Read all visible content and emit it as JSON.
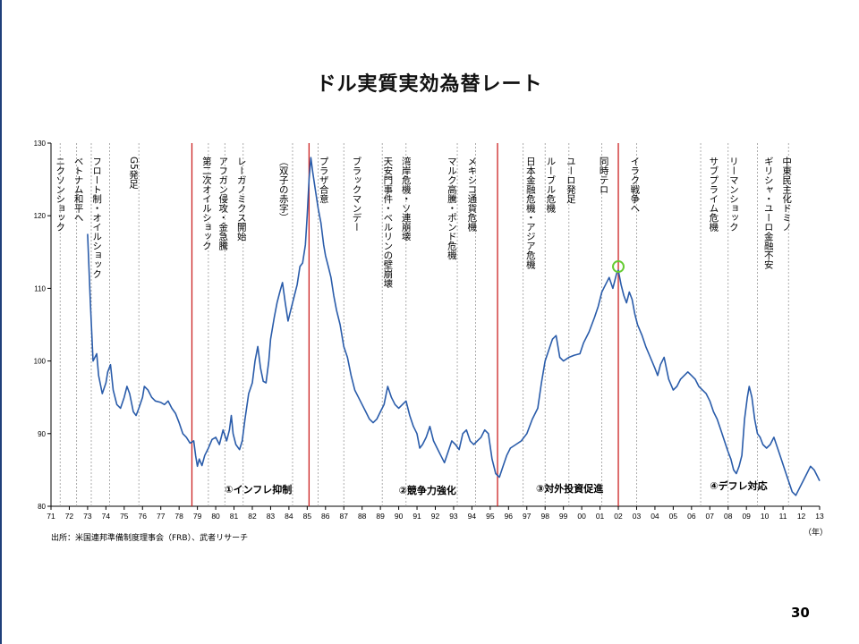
{
  "page": {
    "title": "ドル実質実効為替レート",
    "source": "出所：米国連邦準備制度理事会（FRB）、武者リサーチ",
    "page_number": "30"
  },
  "chart_data": {
    "type": "line",
    "title": "ドル実質実効為替レート",
    "x_unit": "（年）",
    "xlim": [
      1971,
      2013
    ],
    "ylim": [
      80,
      130
    ],
    "yticks": [
      80,
      90,
      100,
      110,
      120,
      130
    ],
    "xtick_labels": [
      "71",
      "72",
      "73",
      "74",
      "75",
      "76",
      "77",
      "78",
      "79",
      "80",
      "81",
      "82",
      "83",
      "84",
      "85",
      "86",
      "87",
      "88",
      "89",
      "90",
      "91",
      "92",
      "93",
      "94",
      "95",
      "96",
      "97",
      "98",
      "99",
      "00",
      "01",
      "02",
      "03",
      "04",
      "05",
      "06",
      "07",
      "08",
      "09",
      "10",
      "11",
      "12",
      "13"
    ],
    "series": [
      {
        "color": "#2a5caa",
        "points": [
          [
            1973.0,
            117.5
          ],
          [
            1973.15,
            108
          ],
          [
            1973.3,
            100
          ],
          [
            1973.5,
            101
          ],
          [
            1973.6,
            98
          ],
          [
            1973.8,
            95.5
          ],
          [
            1974.0,
            97
          ],
          [
            1974.1,
            98.5
          ],
          [
            1974.25,
            99.5
          ],
          [
            1974.4,
            96
          ],
          [
            1974.6,
            94
          ],
          [
            1974.8,
            93.5
          ],
          [
            1975.0,
            95
          ],
          [
            1975.15,
            96.5
          ],
          [
            1975.3,
            95.5
          ],
          [
            1975.5,
            93
          ],
          [
            1975.65,
            92.5
          ],
          [
            1975.8,
            93.5
          ],
          [
            1976.0,
            95
          ],
          [
            1976.1,
            96.5
          ],
          [
            1976.3,
            96
          ],
          [
            1976.5,
            95
          ],
          [
            1976.7,
            94.5
          ],
          [
            1977.0,
            94.3
          ],
          [
            1977.2,
            94
          ],
          [
            1977.4,
            94.5
          ],
          [
            1977.6,
            93.5
          ],
          [
            1977.8,
            92.8
          ],
          [
            1978.0,
            91.5
          ],
          [
            1978.2,
            90
          ],
          [
            1978.4,
            89.5
          ],
          [
            1978.6,
            88.7
          ],
          [
            1978.8,
            89
          ],
          [
            1978.9,
            87
          ],
          [
            1979.0,
            85.5
          ],
          [
            1979.1,
            86.5
          ],
          [
            1979.25,
            85.6
          ],
          [
            1979.4,
            87
          ],
          [
            1979.6,
            88
          ],
          [
            1979.8,
            89.2
          ],
          [
            1980.0,
            89.5
          ],
          [
            1980.2,
            88.5
          ],
          [
            1980.4,
            90.5
          ],
          [
            1980.6,
            89
          ],
          [
            1980.75,
            90.5
          ],
          [
            1980.85,
            92.5
          ],
          [
            1980.95,
            90
          ],
          [
            1981.1,
            88.5
          ],
          [
            1981.3,
            87.8
          ],
          [
            1981.45,
            89
          ],
          [
            1981.6,
            92
          ],
          [
            1981.8,
            95.5
          ],
          [
            1982.0,
            97
          ],
          [
            1982.15,
            100
          ],
          [
            1982.3,
            102
          ],
          [
            1982.45,
            99
          ],
          [
            1982.6,
            97.2
          ],
          [
            1982.75,
            97
          ],
          [
            1982.9,
            100
          ],
          [
            1983.0,
            103
          ],
          [
            1983.2,
            106
          ],
          [
            1983.35,
            108
          ],
          [
            1983.5,
            109.5
          ],
          [
            1983.65,
            110.8
          ],
          [
            1983.8,
            108
          ],
          [
            1983.95,
            105.5
          ],
          [
            1984.1,
            107
          ],
          [
            1984.3,
            109
          ],
          [
            1984.45,
            110.5
          ],
          [
            1984.6,
            113
          ],
          [
            1984.75,
            113.5
          ],
          [
            1984.9,
            116
          ],
          [
            1985.0,
            120
          ],
          [
            1985.1,
            125
          ],
          [
            1985.2,
            128
          ],
          [
            1985.3,
            126
          ],
          [
            1985.45,
            123.5
          ],
          [
            1985.6,
            121
          ],
          [
            1985.75,
            119
          ],
          [
            1985.9,
            116
          ],
          [
            1986.0,
            114.5
          ],
          [
            1986.15,
            113
          ],
          [
            1986.3,
            111.5
          ],
          [
            1986.45,
            109
          ],
          [
            1986.6,
            107
          ],
          [
            1986.8,
            105
          ],
          [
            1987.0,
            102
          ],
          [
            1987.2,
            100.5
          ],
          [
            1987.4,
            98
          ],
          [
            1987.6,
            96
          ],
          [
            1987.8,
            95
          ],
          [
            1988.0,
            94
          ],
          [
            1988.2,
            93
          ],
          [
            1988.4,
            92
          ],
          [
            1988.6,
            91.5
          ],
          [
            1988.8,
            92
          ],
          [
            1989.0,
            93
          ],
          [
            1989.2,
            94
          ],
          [
            1989.4,
            96.5
          ],
          [
            1989.6,
            95
          ],
          [
            1989.8,
            94
          ],
          [
            1990.0,
            93.5
          ],
          [
            1990.2,
            94
          ],
          [
            1990.4,
            94.5
          ],
          [
            1990.6,
            92.5
          ],
          [
            1990.8,
            91
          ],
          [
            1991.0,
            90
          ],
          [
            1991.15,
            88
          ],
          [
            1991.3,
            88.5
          ],
          [
            1991.5,
            89.5
          ],
          [
            1991.7,
            91
          ],
          [
            1991.9,
            89
          ],
          [
            1992.1,
            88
          ],
          [
            1992.3,
            87
          ],
          [
            1992.5,
            86
          ],
          [
            1992.7,
            87.5
          ],
          [
            1992.9,
            89
          ],
          [
            1993.1,
            88.5
          ],
          [
            1993.3,
            87.8
          ],
          [
            1993.5,
            90
          ],
          [
            1993.7,
            90.5
          ],
          [
            1993.9,
            89
          ],
          [
            1994.1,
            88.5
          ],
          [
            1994.3,
            89
          ],
          [
            1994.5,
            89.5
          ],
          [
            1994.7,
            90.5
          ],
          [
            1994.9,
            90
          ],
          [
            1995.1,
            86.5
          ],
          [
            1995.3,
            84.5
          ],
          [
            1995.5,
            84
          ],
          [
            1995.7,
            85.5
          ],
          [
            1995.9,
            87
          ],
          [
            1996.1,
            88
          ],
          [
            1996.4,
            88.5
          ],
          [
            1996.7,
            89
          ],
          [
            1997.0,
            90
          ],
          [
            1997.3,
            92
          ],
          [
            1997.6,
            93.5
          ],
          [
            1997.8,
            97
          ],
          [
            1998.0,
            100
          ],
          [
            1998.2,
            101.5
          ],
          [
            1998.4,
            103
          ],
          [
            1998.6,
            103.5
          ],
          [
            1998.8,
            100.5
          ],
          [
            1999.0,
            100
          ],
          [
            1999.3,
            100.5
          ],
          [
            1999.6,
            100.8
          ],
          [
            1999.9,
            101
          ],
          [
            2000.1,
            102.5
          ],
          [
            2000.4,
            104
          ],
          [
            2000.7,
            106
          ],
          [
            2000.9,
            107.5
          ],
          [
            2001.1,
            109.5
          ],
          [
            2001.3,
            110.5
          ],
          [
            2001.5,
            111.5
          ],
          [
            2001.7,
            110
          ],
          [
            2001.9,
            112
          ],
          [
            2002.0,
            112.5
          ],
          [
            2002.15,
            110.5
          ],
          [
            2002.3,
            109
          ],
          [
            2002.45,
            108
          ],
          [
            2002.6,
            109.5
          ],
          [
            2002.75,
            108.5
          ],
          [
            2002.9,
            106.5
          ],
          [
            2003.05,
            105
          ],
          [
            2003.3,
            103.5
          ],
          [
            2003.5,
            102
          ],
          [
            2003.75,
            100.5
          ],
          [
            2004.0,
            99
          ],
          [
            2004.15,
            98
          ],
          [
            2004.3,
            99.5
          ],
          [
            2004.5,
            100.5
          ],
          [
            2004.75,
            97.5
          ],
          [
            2005.0,
            96
          ],
          [
            2005.2,
            96.5
          ],
          [
            2005.4,
            97.5
          ],
          [
            2005.6,
            98
          ],
          [
            2005.8,
            98.5
          ],
          [
            2006.0,
            98
          ],
          [
            2006.2,
            97.5
          ],
          [
            2006.4,
            96.5
          ],
          [
            2006.6,
            96
          ],
          [
            2006.8,
            95.5
          ],
          [
            2007.0,
            94.5
          ],
          [
            2007.2,
            93
          ],
          [
            2007.4,
            92
          ],
          [
            2007.6,
            90.5
          ],
          [
            2007.8,
            89
          ],
          [
            2008.0,
            87.5
          ],
          [
            2008.15,
            86.5
          ],
          [
            2008.3,
            85
          ],
          [
            2008.45,
            84.5
          ],
          [
            2008.6,
            85.5
          ],
          [
            2008.75,
            87
          ],
          [
            2008.9,
            92
          ],
          [
            2009.05,
            95
          ],
          [
            2009.15,
            96.5
          ],
          [
            2009.3,
            95
          ],
          [
            2009.45,
            92
          ],
          [
            2009.6,
            90
          ],
          [
            2009.75,
            89.5
          ],
          [
            2009.9,
            88.5
          ],
          [
            2010.1,
            88
          ],
          [
            2010.3,
            88.5
          ],
          [
            2010.5,
            89.5
          ],
          [
            2010.7,
            88
          ],
          [
            2010.9,
            86.5
          ],
          [
            2011.1,
            85
          ],
          [
            2011.3,
            83.5
          ],
          [
            2011.5,
            82
          ],
          [
            2011.7,
            81.5
          ],
          [
            2011.9,
            82.5
          ],
          [
            2012.1,
            83.5
          ],
          [
            2012.3,
            84.5
          ],
          [
            2012.5,
            85.5
          ],
          [
            2012.7,
            85
          ],
          [
            2012.9,
            84
          ],
          [
            2013.0,
            83.5
          ]
        ]
      }
    ],
    "event_lines": [
      {
        "x": 1971.5,
        "color": "#999999"
      },
      {
        "x": 1972.4,
        "color": "#999999"
      },
      {
        "x": 1973.2,
        "color": "#999999"
      },
      {
        "x": 1974.2,
        "color": "#999999"
      },
      {
        "x": 1975.8,
        "color": "#999999"
      },
      {
        "x": 1978.7,
        "color": "#cc2222"
      },
      {
        "x": 1979.6,
        "color": "#999999"
      },
      {
        "x": 1980.5,
        "color": "#999999"
      },
      {
        "x": 1981.5,
        "color": "#999999"
      },
      {
        "x": 1984.2,
        "color": "#999999"
      },
      {
        "x": 1985.1,
        "color": "#cc2222"
      },
      {
        "x": 1985.6,
        "color": "#999999"
      },
      {
        "x": 1987.0,
        "color": "#999999"
      },
      {
        "x": 1989.1,
        "color": "#999999"
      },
      {
        "x": 1990.4,
        "color": "#999999"
      },
      {
        "x": 1993.2,
        "color": "#999999"
      },
      {
        "x": 1994.2,
        "color": "#999999"
      },
      {
        "x": 1995.4,
        "color": "#cc2222"
      },
      {
        "x": 1996.8,
        "color": "#999999"
      },
      {
        "x": 1998.0,
        "color": "#999999"
      },
      {
        "x": 1999.3,
        "color": "#999999"
      },
      {
        "x": 2001.1,
        "color": "#999999"
      },
      {
        "x": 2002.0,
        "color": "#cc2222"
      },
      {
        "x": 2003.0,
        "color": "#999999"
      },
      {
        "x": 2006.5,
        "color": "#999999"
      },
      {
        "x": 2008.0,
        "color": "#999999"
      },
      {
        "x": 2009.6,
        "color": "#999999"
      },
      {
        "x": 2011.3,
        "color": "#999999"
      }
    ],
    "marker": {
      "x": 2002.0,
      "y": 113,
      "color": "#66cc33"
    }
  },
  "events": [
    {
      "label": "ニクソンショック",
      "x": 1971.5
    },
    {
      "label": "ベトナム和平へ",
      "x": 1972.5
    },
    {
      "label": "フロート制・オイルショック",
      "x": 1973.5
    },
    {
      "label": "G5発足",
      "x": 1975.5
    },
    {
      "label": "第二次オイルショック",
      "x": 1979.5
    },
    {
      "label": "アフガン侵攻・金急騰",
      "x": 1980.4
    },
    {
      "label": "レーガノミクス開始",
      "x": 1981.4
    },
    {
      "label": "（双子の赤字）",
      "x": 1983.7
    },
    {
      "label": "プラザ合意",
      "x": 1985.9
    },
    {
      "label": "ブラックマンデー",
      "x": 1987.7
    },
    {
      "label": "天安門事件・ベルリンの壁崩壊",
      "x": 1989.4
    },
    {
      "label": "湾岸危機・ソ連崩壊",
      "x": 1990.4
    },
    {
      "label": "マルク高騰・ポンド危機",
      "x": 1992.9
    },
    {
      "label": "メキシコ通貨危機",
      "x": 1994.0
    },
    {
      "label": "日本金融危機・アジア危機",
      "x": 1997.2
    },
    {
      "label": "ルーブル危機",
      "x": 1998.3
    },
    {
      "label": "ユーロ発足",
      "x": 1999.4
    },
    {
      "label": "同時テロ",
      "x": 2001.2
    },
    {
      "label": "イラク戦争へ",
      "x": 2002.9
    },
    {
      "label": "サブプライム危機",
      "x": 2007.2
    },
    {
      "label": "リーマンショック",
      "x": 2008.3
    },
    {
      "label": "ギリシャ・ユーロ金融不安",
      "x": 2010.2
    },
    {
      "label": "中東民主化ドミノ",
      "x": 2011.2
    }
  ],
  "phases": [
    {
      "label": "①インフレ抑制",
      "x": 1980.5,
      "y": 82.3
    },
    {
      "label": "②競争力強化",
      "x": 1990.0,
      "y": 82.2
    },
    {
      "label": "③対外投資促進",
      "x": 1997.5,
      "y": 82.5
    },
    {
      "label": "④デフレ対応",
      "x": 2007.0,
      "y": 82.8
    }
  ]
}
